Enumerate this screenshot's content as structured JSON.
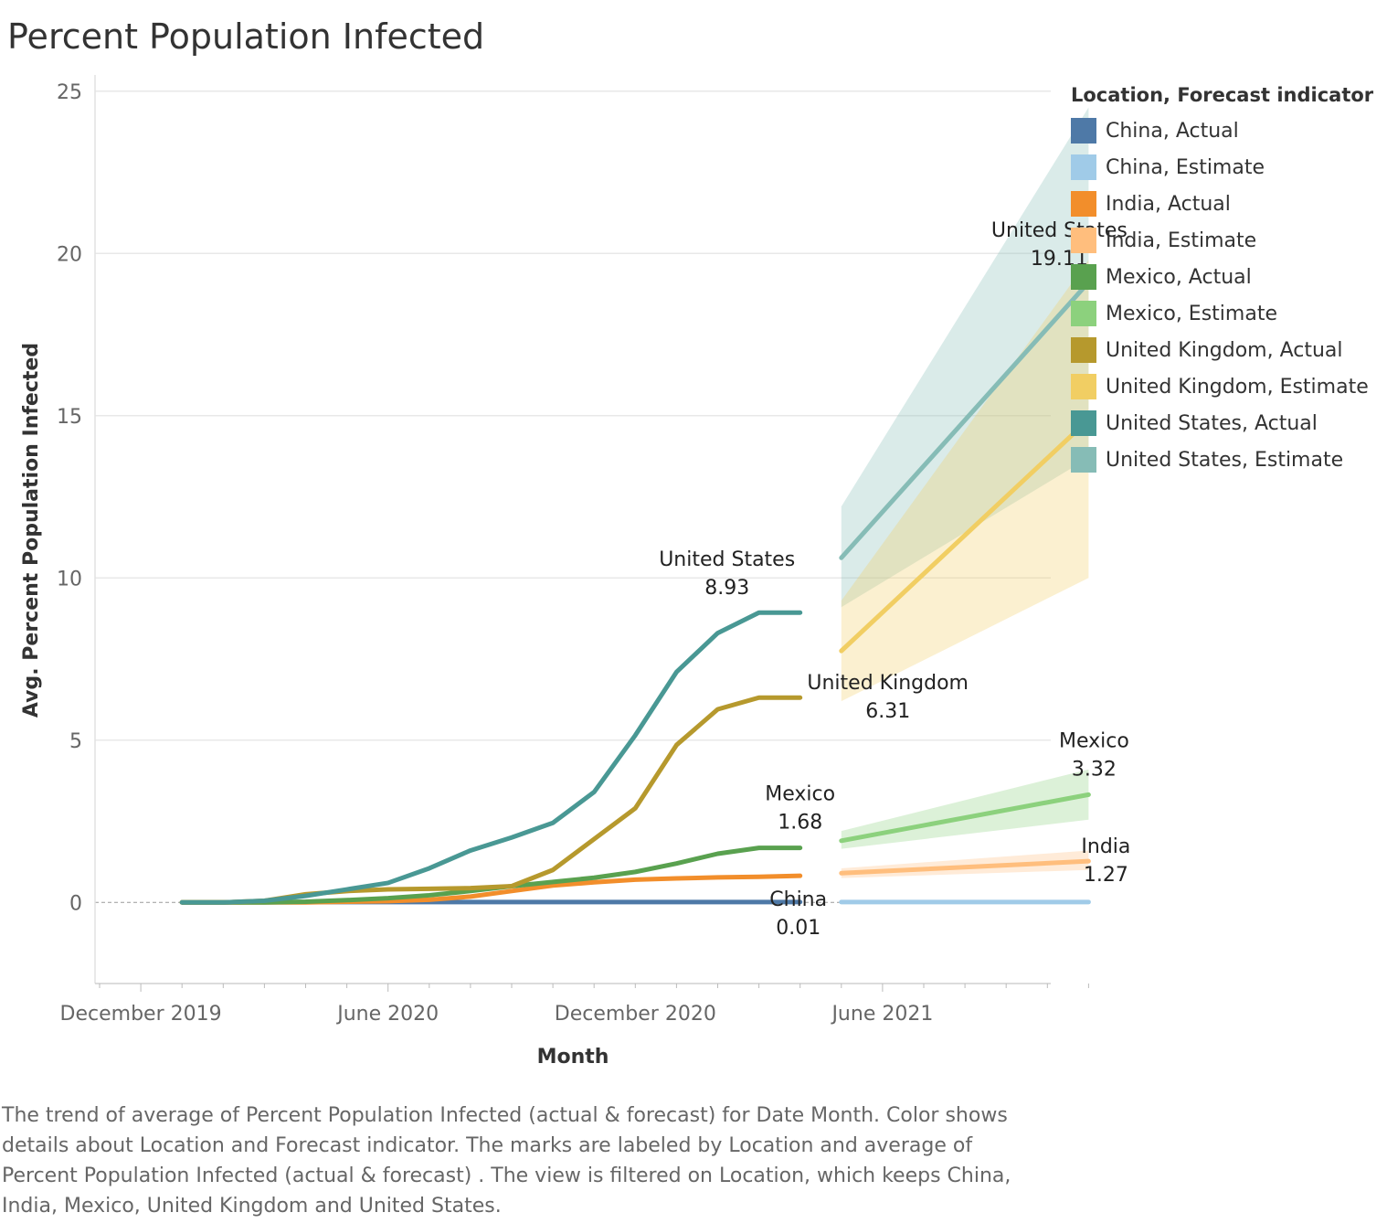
{
  "page": {
    "title": "Percent Population Infected",
    "caption": "The trend of average of Percent Population Infected (actual & forecast)  for Date Month.  Color shows details about Location and Forecast indicator.  The marks are labeled by Location and average of Percent Population Infected (actual & forecast) . The view is filtered on Location, which keeps China, India, Mexico, United Kingdom and United States."
  },
  "legend": {
    "title": "Location, Forecast indicator",
    "items": [
      {
        "label": "China, Actual",
        "color": "#4e79a7"
      },
      {
        "label": "China, Estimate",
        "color": "#a0cbe8"
      },
      {
        "label": "India, Actual",
        "color": "#f28e2b"
      },
      {
        "label": "India, Estimate",
        "color": "#ffbe7d"
      },
      {
        "label": "Mexico, Actual",
        "color": "#59a14f"
      },
      {
        "label": "Mexico, Estimate",
        "color": "#8cd17d"
      },
      {
        "label": "United Kingdom, Actual",
        "color": "#b6992d"
      },
      {
        "label": "United Kingdom, Estimate",
        "color": "#f1ce63"
      },
      {
        "label": "United States, Actual",
        "color": "#499894"
      },
      {
        "label": "United States, Estimate",
        "color": "#86bcb6"
      }
    ]
  },
  "chart_data": {
    "type": "line",
    "title": "Percent Population Infected",
    "xlabel": "Month",
    "ylabel": "Avg. Percent Population Infected",
    "ylim": [
      -2.5,
      25.5
    ],
    "yticks": [
      0,
      5,
      10,
      15,
      20,
      25
    ],
    "xlim": [
      "2019-11",
      "2021-11"
    ],
    "xticks": [
      {
        "value": "2019-12",
        "label": "December 2019"
      },
      {
        "value": "2020-06",
        "label": "June 2020"
      },
      {
        "value": "2020-12",
        "label": "December 2020"
      },
      {
        "value": "2021-06",
        "label": "June 2021"
      }
    ],
    "grid": true,
    "legend_position": "right",
    "series": [
      {
        "name": "China, Actual",
        "color": "#4e79a7",
        "x": [
          "2020-01",
          "2020-02",
          "2020-03",
          "2020-04",
          "2020-05",
          "2020-06",
          "2020-07",
          "2020-08",
          "2020-09",
          "2020-10",
          "2020-11",
          "2020-12",
          "2021-01",
          "2021-02",
          "2021-03",
          "2021-04"
        ],
        "y": [
          0,
          0,
          0.01,
          0.01,
          0.01,
          0.01,
          0.01,
          0.01,
          0.01,
          0.01,
          0.01,
          0.01,
          0.01,
          0.01,
          0.01,
          0.01
        ]
      },
      {
        "name": "India, Actual",
        "color": "#f28e2b",
        "x": [
          "2020-01",
          "2020-02",
          "2020-03",
          "2020-04",
          "2020-05",
          "2020-06",
          "2020-07",
          "2020-08",
          "2020-09",
          "2020-10",
          "2020-11",
          "2020-12",
          "2021-01",
          "2021-02",
          "2021-03",
          "2021-04"
        ],
        "y": [
          0,
          0,
          0,
          0,
          0.02,
          0.04,
          0.08,
          0.18,
          0.35,
          0.52,
          0.62,
          0.7,
          0.74,
          0.77,
          0.79,
          0.82
        ]
      },
      {
        "name": "Mexico, Actual",
        "color": "#59a14f",
        "x": [
          "2020-01",
          "2020-02",
          "2020-03",
          "2020-04",
          "2020-05",
          "2020-06",
          "2020-07",
          "2020-08",
          "2020-09",
          "2020-10",
          "2020-11",
          "2020-12",
          "2021-01",
          "2021-02",
          "2021-03",
          "2021-04"
        ],
        "y": [
          0,
          0,
          0,
          0.02,
          0.07,
          0.13,
          0.22,
          0.35,
          0.5,
          0.63,
          0.76,
          0.94,
          1.2,
          1.5,
          1.68,
          1.68
        ]
      },
      {
        "name": "United Kingdom, Actual",
        "color": "#b6992d",
        "x": [
          "2020-01",
          "2020-02",
          "2020-03",
          "2020-04",
          "2020-05",
          "2020-06",
          "2020-07",
          "2020-08",
          "2020-09",
          "2020-10",
          "2020-11",
          "2020-12",
          "2021-01",
          "2021-02",
          "2021-03",
          "2021-04"
        ],
        "y": [
          0,
          0,
          0.05,
          0.25,
          0.35,
          0.4,
          0.42,
          0.44,
          0.5,
          1.0,
          1.95,
          2.9,
          4.85,
          5.95,
          6.31,
          6.31
        ]
      },
      {
        "name": "United States, Actual",
        "color": "#499894",
        "x": [
          "2020-01",
          "2020-02",
          "2020-03",
          "2020-04",
          "2020-05",
          "2020-06",
          "2020-07",
          "2020-08",
          "2020-09",
          "2020-10",
          "2020-11",
          "2020-12",
          "2021-01",
          "2021-02",
          "2021-03",
          "2021-04"
        ],
        "y": [
          0,
          0,
          0.05,
          0.2,
          0.4,
          0.6,
          1.05,
          1.6,
          2.0,
          2.45,
          3.4,
          5.15,
          7.1,
          8.3,
          8.93,
          8.93
        ]
      },
      {
        "name": "China, Estimate",
        "color": "#a0cbe8",
        "x": [
          "2021-05",
          "2021-11"
        ],
        "y": [
          0.01,
          0.01
        ],
        "band_lower": [
          0.0,
          0.0
        ],
        "band_upper": [
          0.02,
          0.02
        ]
      },
      {
        "name": "India, Estimate",
        "color": "#ffbe7d",
        "x": [
          "2021-05",
          "2021-11"
        ],
        "y": [
          0.9,
          1.27
        ],
        "band_lower": [
          0.75,
          1.0
        ],
        "band_upper": [
          1.05,
          1.6
        ]
      },
      {
        "name": "Mexico, Estimate",
        "color": "#8cd17d",
        "x": [
          "2021-05",
          "2021-11"
        ],
        "y": [
          1.9,
          3.32
        ],
        "band_lower": [
          1.65,
          2.55
        ],
        "band_upper": [
          2.2,
          4.1
        ]
      },
      {
        "name": "United Kingdom, Estimate",
        "color": "#f1ce63",
        "x": [
          "2021-05",
          "2021-11"
        ],
        "y": [
          7.75,
          14.88
        ],
        "band_lower": [
          6.2,
          10.0
        ],
        "band_upper": [
          9.3,
          19.8
        ]
      },
      {
        "name": "United States, Estimate",
        "color": "#86bcb6",
        "x": [
          "2021-05",
          "2021-11"
        ],
        "y": [
          10.62,
          19.11
        ],
        "band_lower": [
          9.1,
          13.7
        ],
        "band_upper": [
          12.2,
          24.5
        ]
      }
    ],
    "annotations": [
      {
        "location": "United States",
        "value": "8.93",
        "x": "2021-04",
        "y": 8.93
      },
      {
        "location": "United Kingdom",
        "value": "6.31",
        "x": "2021-04",
        "y": 6.31
      },
      {
        "location": "Mexico",
        "value": "1.68",
        "x": "2021-04",
        "y": 1.68
      },
      {
        "location": "China",
        "value": "0.01",
        "x": "2021-04",
        "y": 0.01
      },
      {
        "location": "United States",
        "value": "19.11",
        "x": "2021-11",
        "y": 19.11
      },
      {
        "location": "Mexico",
        "value": "3.32",
        "x": "2021-11",
        "y": 3.32
      },
      {
        "location": "India",
        "value": "1.27",
        "x": "2021-11",
        "y": 1.27
      }
    ]
  }
}
